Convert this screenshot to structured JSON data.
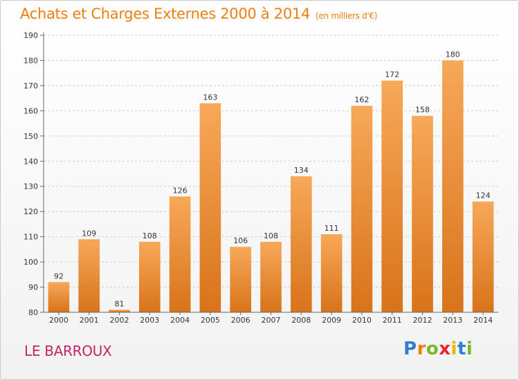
{
  "header": {
    "title": "Achats et Charges Externes 2000 à 2014",
    "subtitle": "(en milliers d'€)"
  },
  "footer": {
    "place": "LE BARROUX",
    "logo_letters": [
      {
        "char": "P",
        "color": "#2e7fd1"
      },
      {
        "char": "r",
        "color": "#f07d10"
      },
      {
        "char": "o",
        "color": "#7ab829"
      },
      {
        "char": "x",
        "color": "#e8262e"
      },
      {
        "char": "i",
        "color": "#f0b400"
      },
      {
        "char": "t",
        "color": "#2e7fd1"
      },
      {
        "char": "i",
        "color": "#7ab829"
      }
    ]
  },
  "colors": {
    "bar_light": "#f7a859",
    "bar_dark": "#d8731a",
    "axis": "#666666",
    "grid": "#cccccc"
  },
  "chart_data": {
    "type": "bar",
    "title": "Achats et Charges Externes 2000 à 2014",
    "subtitle": "(en milliers d'€)",
    "categories": [
      "2000",
      "2001",
      "2002",
      "2003",
      "2004",
      "2005",
      "2006",
      "2007",
      "2008",
      "2009",
      "2010",
      "2011",
      "2012",
      "2013",
      "2014"
    ],
    "values": [
      92,
      109,
      81,
      108,
      126,
      163,
      106,
      108,
      134,
      111,
      162,
      172,
      158,
      180,
      124
    ],
    "ylim": [
      80,
      190
    ],
    "yticks": [
      80,
      90,
      100,
      110,
      120,
      130,
      140,
      150,
      160,
      170,
      180,
      190
    ],
    "grid": true
  }
}
